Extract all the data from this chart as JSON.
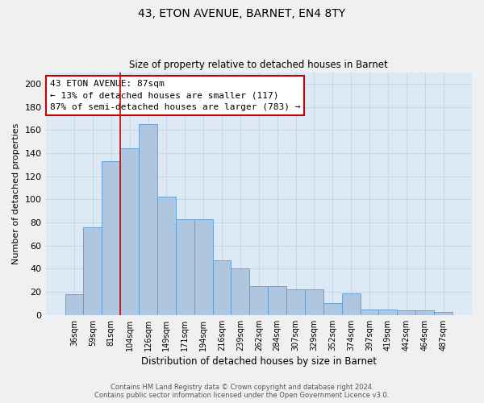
{
  "title_line1": "43, ETON AVENUE, BARNET, EN4 8TY",
  "title_line2": "Size of property relative to detached houses in Barnet",
  "xlabel": "Distribution of detached houses by size in Barnet",
  "ylabel": "Number of detached properties",
  "categories": [
    "36sqm",
    "59sqm",
    "81sqm",
    "104sqm",
    "126sqm",
    "149sqm",
    "171sqm",
    "194sqm",
    "216sqm",
    "239sqm",
    "262sqm",
    "284sqm",
    "307sqm",
    "329sqm",
    "352sqm",
    "374sqm",
    "397sqm",
    "419sqm",
    "442sqm",
    "464sqm",
    "487sqm"
  ],
  "values": [
    18,
    76,
    133,
    144,
    165,
    102,
    83,
    83,
    47,
    40,
    25,
    25,
    22,
    22,
    10,
    19,
    5,
    5,
    4,
    4,
    3
  ],
  "bar_color": "#aec6e0",
  "bar_edgecolor": "#5b9bd5",
  "vline_position": 2.5,
  "vline_color": "#cc0000",
  "annotation_text": "43 ETON AVENUE: 87sqm\n← 13% of detached houses are smaller (117)\n87% of semi-detached houses are larger (783) →",
  "annotation_box_color": "#ffffff",
  "annotation_box_edgecolor": "#cc0000",
  "ylim": [
    0,
    210
  ],
  "yticks": [
    0,
    20,
    40,
    60,
    80,
    100,
    120,
    140,
    160,
    180,
    200
  ],
  "grid_color": "#c8d8ea",
  "background_color": "#ddeaf6",
  "fig_background": "#f0f0f0",
  "footer_line1": "Contains HM Land Registry data © Crown copyright and database right 2024.",
  "footer_line2": "Contains public sector information licensed under the Open Government Licence v3.0."
}
